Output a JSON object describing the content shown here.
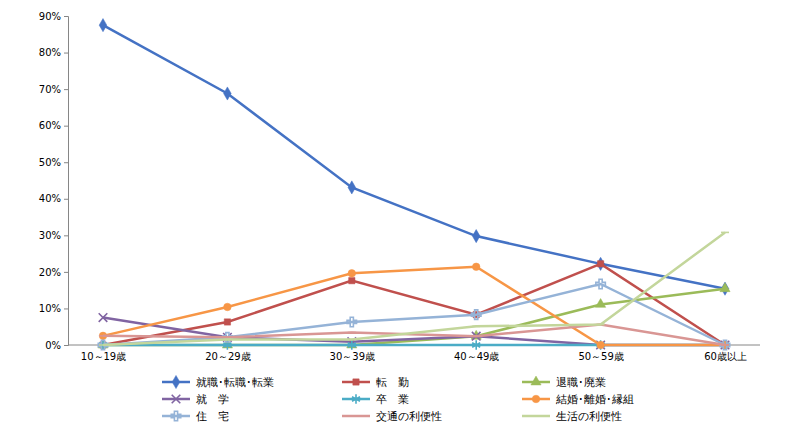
{
  "chart_data": {
    "type": "line",
    "categories": [
      "10～19歳",
      "20～29歳",
      "30～39歳",
      "40～49歳",
      "50～59歳",
      "60歳以上"
    ],
    "ylim": [
      0,
      90
    ],
    "yticks": [
      {
        "value": 0,
        "label": "0%"
      },
      {
        "value": 10,
        "label": "10%"
      },
      {
        "value": 20,
        "label": "20%"
      },
      {
        "value": 30,
        "label": "30%"
      },
      {
        "value": 40,
        "label": "40%"
      },
      {
        "value": 50,
        "label": "50%"
      },
      {
        "value": 60,
        "label": "60%"
      },
      {
        "value": 70,
        "label": "70%"
      },
      {
        "value": 80,
        "label": "80%"
      },
      {
        "value": 90,
        "label": "90%"
      }
    ],
    "grid": false,
    "legend": "bottom",
    "series": [
      {
        "name": "就職･転職･転業",
        "color": "#4472c4",
        "marker": "diamond",
        "values": [
          87.5,
          68.8,
          43.1,
          29.8,
          22.2,
          15.4
        ]
      },
      {
        "name": "転　勤",
        "color": "#c0504d",
        "marker": "square",
        "values": [
          0,
          6.3,
          17.6,
          8.3,
          22.2,
          0
        ]
      },
      {
        "name": "退職･廃業",
        "color": "#9bbb59",
        "marker": "triangle",
        "values": [
          0,
          0,
          0,
          2.4,
          11.1,
          15.4
        ]
      },
      {
        "name": "就　学",
        "color": "#8064a2",
        "marker": "x",
        "values": [
          7.5,
          2.1,
          0.9,
          2.4,
          0,
          0
        ]
      },
      {
        "name": "卒　業",
        "color": "#4bacc6",
        "marker": "star",
        "values": [
          0,
          0,
          0,
          0,
          0,
          0
        ]
      },
      {
        "name": "結婚･離婚･縁組",
        "color": "#f79646",
        "marker": "circle",
        "values": [
          2.5,
          10.4,
          19.6,
          21.4,
          0,
          0
        ]
      },
      {
        "name": "住　宅",
        "color": "#95b3d7",
        "marker": "plus",
        "values": [
          0,
          2.1,
          6.3,
          8.3,
          16.7,
          0
        ]
      },
      {
        "name": "交通の利便性",
        "color": "#d99694",
        "marker": "dash",
        "values": [
          2.5,
          2.1,
          3.4,
          2.4,
          5.6,
          0
        ]
      },
      {
        "name": "生活の利便性",
        "color": "#c3d69b",
        "marker": "dash",
        "values": [
          0,
          1.5,
          1.5,
          5.1,
          5.6,
          30.8
        ]
      }
    ]
  }
}
